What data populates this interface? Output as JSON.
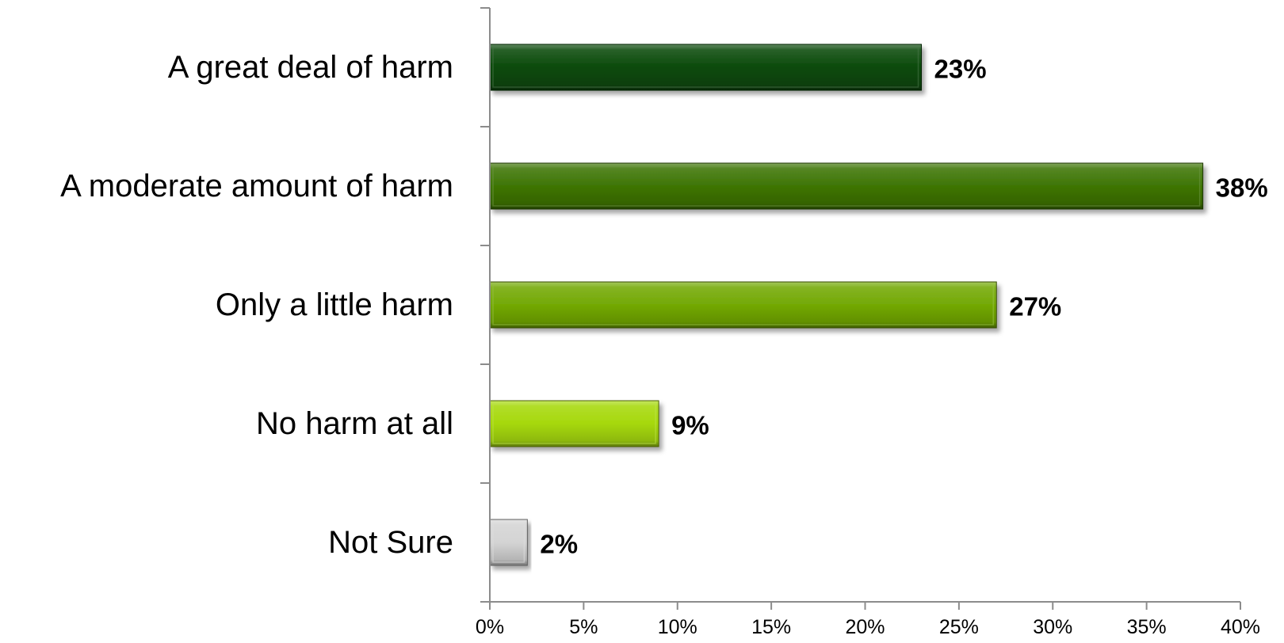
{
  "chart_data": {
    "type": "bar",
    "orientation": "horizontal",
    "title": "",
    "xlabel": "",
    "ylabel": "",
    "categories": [
      "A great deal of harm",
      "A moderate amount of harm",
      "Only a little harm",
      "No harm at all",
      "Not Sure"
    ],
    "values": [
      23,
      38,
      27,
      9,
      2
    ],
    "value_labels": [
      "23%",
      "38%",
      "27%",
      "9%",
      "2%"
    ],
    "bar_colors": [
      "#0b4a0b",
      "#3e7505",
      "#73a905",
      "#a6d80c",
      "#d4d4d4"
    ],
    "xlim": [
      0,
      40
    ],
    "x_ticks": [
      0,
      5,
      10,
      15,
      20,
      25,
      30,
      35,
      40
    ],
    "x_tick_labels": [
      "0%",
      "5%",
      "10%",
      "15%",
      "20%",
      "25%",
      "30%",
      "35%",
      "40%"
    ],
    "grid": false,
    "legend": "none"
  }
}
